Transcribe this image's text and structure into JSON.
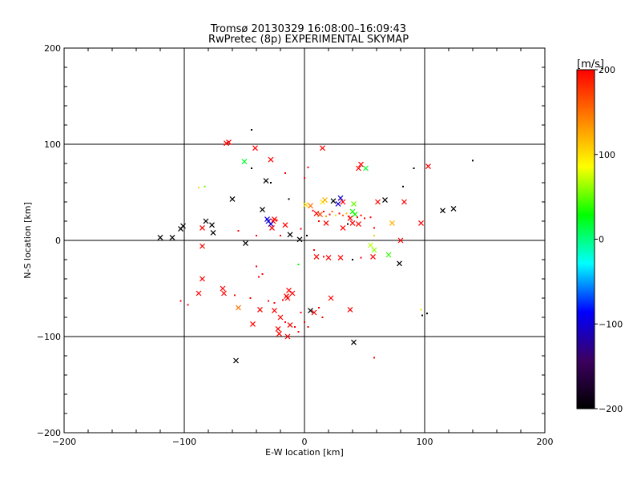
{
  "chart_data": {
    "type": "scatter",
    "title": "Tromsø 20130329 16:08:00–16:09:43",
    "subtitle": "RwPretec (8p) EXPERIMENTAL SKYMAP",
    "xlabel": "E-W location [km]",
    "ylabel": "N-S location [km]",
    "xlim": [
      -200,
      200
    ],
    "ylim": [
      -200,
      200
    ],
    "xticks": [
      -200,
      -100,
      0,
      100,
      200
    ],
    "yticks": [
      -200,
      -100,
      0,
      100,
      200
    ],
    "x_tick_labels": [
      "−200",
      "−100",
      "0",
      "100",
      "200"
    ],
    "y_tick_labels": [
      "−200",
      "−100",
      "0",
      "100",
      "200"
    ],
    "grid": true,
    "colorbar": {
      "label": "[m/s]",
      "range": [
        -200,
        200
      ],
      "ticks": [
        200,
        100,
        0,
        -100,
        -200
      ],
      "tick_labels": [
        "200",
        "100",
        "0",
        "−100",
        "−200"
      ],
      "stops": [
        "#000000",
        "#3c0060",
        "#0000ff",
        "#00ffff",
        "#00ff00",
        "#ffff00",
        "#ff8000",
        "#ff0000"
      ]
    },
    "points": [
      {
        "x": -44,
        "y": 115,
        "v": -200,
        "m": "dot"
      },
      {
        "x": -65,
        "y": 101,
        "v": 200,
        "m": "cross"
      },
      {
        "x": -63,
        "y": 102,
        "v": 200,
        "m": "cross"
      },
      {
        "x": -41,
        "y": 96,
        "v": 200,
        "m": "cross"
      },
      {
        "x": -50,
        "y": 82,
        "v": 20,
        "m": "cross"
      },
      {
        "x": -28,
        "y": 84,
        "v": 200,
        "m": "cross"
      },
      {
        "x": -44,
        "y": 75,
        "v": -200,
        "m": "dot"
      },
      {
        "x": -16,
        "y": 70,
        "v": 200,
        "m": "dot"
      },
      {
        "x": 15,
        "y": 96,
        "v": 200,
        "m": "cross"
      },
      {
        "x": 3,
        "y": 76,
        "v": 200,
        "m": "dot"
      },
      {
        "x": 47,
        "y": 79,
        "v": 200,
        "m": "cross"
      },
      {
        "x": 45,
        "y": 75,
        "v": 200,
        "m": "cross"
      },
      {
        "x": 51,
        "y": 75,
        "v": 20,
        "m": "cross"
      },
      {
        "x": 91,
        "y": 75,
        "v": -200,
        "m": "dot"
      },
      {
        "x": 103,
        "y": 77,
        "v": 200,
        "m": "cross"
      },
      {
        "x": 140,
        "y": 83,
        "v": -200,
        "m": "dot"
      },
      {
        "x": -32,
        "y": 62,
        "v": -200,
        "m": "cross"
      },
      {
        "x": -28,
        "y": 60,
        "v": -200,
        "m": "dot"
      },
      {
        "x": 0,
        "y": 65,
        "v": 200,
        "m": "dot"
      },
      {
        "x": -88,
        "y": 55,
        "v": 100,
        "m": "dot"
      },
      {
        "x": -83,
        "y": 56,
        "v": 50,
        "m": "dot"
      },
      {
        "x": -60,
        "y": 43,
        "v": -200,
        "m": "cross"
      },
      {
        "x": -13,
        "y": 43,
        "v": -200,
        "m": "dot"
      },
      {
        "x": 15,
        "y": 40,
        "v": 100,
        "m": "cross"
      },
      {
        "x": 17,
        "y": 42,
        "v": 120,
        "m": "cross"
      },
      {
        "x": 24,
        "y": 41,
        "v": -200,
        "m": "cross"
      },
      {
        "x": 30,
        "y": 44,
        "v": -100,
        "m": "cross"
      },
      {
        "x": 32,
        "y": 40,
        "v": 200,
        "m": "cross"
      },
      {
        "x": 28,
        "y": 38,
        "v": -100,
        "m": "cross"
      },
      {
        "x": 41,
        "y": 38,
        "v": 50,
        "m": "cross"
      },
      {
        "x": 61,
        "y": 40,
        "v": 200,
        "m": "cross"
      },
      {
        "x": 67,
        "y": 42,
        "v": -200,
        "m": "cross"
      },
      {
        "x": 83,
        "y": 40,
        "v": 200,
        "m": "cross"
      },
      {
        "x": 82,
        "y": 56,
        "v": -200,
        "m": "dot"
      },
      {
        "x": 115,
        "y": 31,
        "v": -200,
        "m": "cross"
      },
      {
        "x": 124,
        "y": 33,
        "v": -200,
        "m": "cross"
      },
      {
        "x": -35,
        "y": 32,
        "v": -200,
        "m": "cross"
      },
      {
        "x": -31,
        "y": 22,
        "v": -100,
        "m": "cross"
      },
      {
        "x": -30,
        "y": 20,
        "v": -100,
        "m": "cross"
      },
      {
        "x": -26,
        "y": 20,
        "v": 200,
        "m": "cross"
      },
      {
        "x": -25,
        "y": 22,
        "v": 200,
        "m": "cross"
      },
      {
        "x": -28,
        "y": 17,
        "v": -100,
        "m": "cross"
      },
      {
        "x": -27,
        "y": 13,
        "v": 200,
        "m": "cross"
      },
      {
        "x": -23,
        "y": 21,
        "v": 200,
        "m": "dot"
      },
      {
        "x": -16,
        "y": 16,
        "v": 200,
        "m": "cross"
      },
      {
        "x": -12,
        "y": 6,
        "v": -200,
        "m": "cross"
      },
      {
        "x": -4,
        "y": 1,
        "v": -200,
        "m": "cross"
      },
      {
        "x": 2,
        "y": 5,
        "v": -200,
        "m": "dot"
      },
      {
        "x": -3,
        "y": 12,
        "v": 200,
        "m": "dot"
      },
      {
        "x": 1,
        "y": 37,
        "v": 100,
        "m": "cross"
      },
      {
        "x": 5,
        "y": 36,
        "v": 150,
        "m": "cross"
      },
      {
        "x": 7,
        "y": 31,
        "v": 200,
        "m": "dot"
      },
      {
        "x": 10,
        "y": 28,
        "v": 200,
        "m": "cross"
      },
      {
        "x": 13,
        "y": 27,
        "v": 170,
        "m": "cross"
      },
      {
        "x": 16,
        "y": 30,
        "v": 200,
        "m": "dot"
      },
      {
        "x": 18,
        "y": 25,
        "v": 130,
        "m": "dot"
      },
      {
        "x": 21,
        "y": 27,
        "v": 200,
        "m": "dot"
      },
      {
        "x": 23,
        "y": 30,
        "v": 150,
        "m": "dot"
      },
      {
        "x": 26,
        "y": 26,
        "v": 100,
        "m": "dot"
      },
      {
        "x": 29,
        "y": 28,
        "v": 200,
        "m": "dot"
      },
      {
        "x": 32,
        "y": 26,
        "v": 160,
        "m": "dot"
      },
      {
        "x": 35,
        "y": 28,
        "v": 120,
        "m": "dot"
      },
      {
        "x": 37,
        "y": 25,
        "v": 200,
        "m": "dot"
      },
      {
        "x": 40,
        "y": 30,
        "v": 30,
        "m": "cross"
      },
      {
        "x": 42,
        "y": 27,
        "v": 30,
        "m": "cross"
      },
      {
        "x": 44,
        "y": 24,
        "v": 200,
        "m": "dot"
      },
      {
        "x": 47,
        "y": 26,
        "v": 200,
        "m": "dot"
      },
      {
        "x": 50,
        "y": 23,
        "v": 200,
        "m": "dot"
      },
      {
        "x": 55,
        "y": 24,
        "v": 200,
        "m": "dot"
      },
      {
        "x": 38,
        "y": 23,
        "v": 200,
        "m": "cross"
      },
      {
        "x": 40,
        "y": 18,
        "v": 200,
        "m": "cross"
      },
      {
        "x": 45,
        "y": 17,
        "v": 200,
        "m": "cross"
      },
      {
        "x": 36,
        "y": 17,
        "v": -200,
        "m": "dot"
      },
      {
        "x": 32,
        "y": 13,
        "v": 200,
        "m": "cross"
      },
      {
        "x": 18,
        "y": 18,
        "v": 200,
        "m": "cross"
      },
      {
        "x": 12,
        "y": 20,
        "v": 200,
        "m": "dot"
      },
      {
        "x": 73,
        "y": 18,
        "v": 120,
        "m": "cross"
      },
      {
        "x": 97,
        "y": 18,
        "v": 200,
        "m": "cross"
      },
      {
        "x": 58,
        "y": 13,
        "v": 200,
        "m": "dot"
      },
      {
        "x": 58,
        "y": 5,
        "v": 110,
        "m": "dot"
      },
      {
        "x": 55,
        "y": -5,
        "v": 70,
        "m": "cross"
      },
      {
        "x": 58,
        "y": -10,
        "v": 60,
        "m": "cross"
      },
      {
        "x": 70,
        "y": -15,
        "v": 40,
        "m": "cross"
      },
      {
        "x": 79,
        "y": -24,
        "v": -200,
        "m": "cross"
      },
      {
        "x": 80,
        "y": 0,
        "v": 200,
        "m": "cross"
      },
      {
        "x": 57,
        "y": -17,
        "v": 200,
        "m": "cross"
      },
      {
        "x": 47,
        "y": -18,
        "v": 200,
        "m": "dot"
      },
      {
        "x": 40,
        "y": -20,
        "v": -200,
        "m": "dot"
      },
      {
        "x": 30,
        "y": -18,
        "v": 200,
        "m": "cross"
      },
      {
        "x": 20,
        "y": -18,
        "v": 200,
        "m": "cross"
      },
      {
        "x": 16,
        "y": -17,
        "v": 200,
        "m": "dot"
      },
      {
        "x": 10,
        "y": -17,
        "v": 200,
        "m": "cross"
      },
      {
        "x": 8,
        "y": -10,
        "v": 200,
        "m": "dot"
      },
      {
        "x": -120,
        "y": 3,
        "v": -200,
        "m": "cross"
      },
      {
        "x": -110,
        "y": 3,
        "v": -200,
        "m": "cross"
      },
      {
        "x": -103,
        "y": 12,
        "v": -200,
        "m": "cross"
      },
      {
        "x": -101,
        "y": 15,
        "v": -200,
        "m": "cross"
      },
      {
        "x": -82,
        "y": 20,
        "v": -200,
        "m": "cross"
      },
      {
        "x": -77,
        "y": 16,
        "v": -200,
        "m": "cross"
      },
      {
        "x": -76,
        "y": 8,
        "v": -200,
        "m": "cross"
      },
      {
        "x": -85,
        "y": 13,
        "v": 200,
        "m": "cross"
      },
      {
        "x": -85,
        "y": -6,
        "v": 200,
        "m": "cross"
      },
      {
        "x": -49,
        "y": -3,
        "v": -200,
        "m": "cross"
      },
      {
        "x": -55,
        "y": 10,
        "v": 200,
        "m": "dot"
      },
      {
        "x": -40,
        "y": 5,
        "v": 200,
        "m": "dot"
      },
      {
        "x": -20,
        "y": 5,
        "v": 200,
        "m": "dot"
      },
      {
        "x": -5,
        "y": -25,
        "v": 30,
        "m": "dot"
      },
      {
        "x": -40,
        "y": -27,
        "v": 200,
        "m": "dot"
      },
      {
        "x": -38,
        "y": -38,
        "v": 200,
        "m": "dot"
      },
      {
        "x": -35,
        "y": -35,
        "v": 200,
        "m": "dot"
      },
      {
        "x": -85,
        "y": -40,
        "v": 200,
        "m": "cross"
      },
      {
        "x": -88,
        "y": -55,
        "v": 200,
        "m": "cross"
      },
      {
        "x": -68,
        "y": -50,
        "v": 200,
        "m": "cross"
      },
      {
        "x": -67,
        "y": -55,
        "v": 200,
        "m": "cross"
      },
      {
        "x": -58,
        "y": -57,
        "v": 200,
        "m": "dot"
      },
      {
        "x": -45,
        "y": -60,
        "v": 200,
        "m": "dot"
      },
      {
        "x": -30,
        "y": -63,
        "v": 200,
        "m": "dot"
      },
      {
        "x": -25,
        "y": -65,
        "v": 200,
        "m": "dot"
      },
      {
        "x": -10,
        "y": -55,
        "v": 200,
        "m": "cross"
      },
      {
        "x": -13,
        "y": -52,
        "v": 200,
        "m": "cross"
      },
      {
        "x": -15,
        "y": -58,
        "v": 200,
        "m": "cross"
      },
      {
        "x": -14,
        "y": -60,
        "v": 200,
        "m": "cross"
      },
      {
        "x": -18,
        "y": -62,
        "v": 200,
        "m": "dot"
      },
      {
        "x": -37,
        "y": -72,
        "v": 200,
        "m": "cross"
      },
      {
        "x": -55,
        "y": -70,
        "v": 150,
        "m": "cross"
      },
      {
        "x": -97,
        "y": -67,
        "v": 200,
        "m": "dot"
      },
      {
        "x": -103,
        "y": -63,
        "v": 200,
        "m": "dot"
      },
      {
        "x": -43,
        "y": -87,
        "v": 200,
        "m": "cross"
      },
      {
        "x": -25,
        "y": -73,
        "v": 200,
        "m": "cross"
      },
      {
        "x": -20,
        "y": -80,
        "v": 200,
        "m": "cross"
      },
      {
        "x": -16,
        "y": -85,
        "v": 200,
        "m": "dot"
      },
      {
        "x": -12,
        "y": -88,
        "v": 200,
        "m": "cross"
      },
      {
        "x": -22,
        "y": -92,
        "v": 200,
        "m": "cross"
      },
      {
        "x": -21,
        "y": -97,
        "v": 200,
        "m": "cross"
      },
      {
        "x": -8,
        "y": -90,
        "v": 200,
        "m": "dot"
      },
      {
        "x": -5,
        "y": -95,
        "v": 200,
        "m": "dot"
      },
      {
        "x": -3,
        "y": -75,
        "v": 200,
        "m": "dot"
      },
      {
        "x": 0,
        "y": -85,
        "v": 200,
        "m": "dot"
      },
      {
        "x": 3,
        "y": -90,
        "v": 200,
        "m": "dot"
      },
      {
        "x": -14,
        "y": -100,
        "v": 200,
        "m": "cross"
      },
      {
        "x": 5,
        "y": -73,
        "v": -200,
        "m": "cross"
      },
      {
        "x": 8,
        "y": -75,
        "v": 200,
        "m": "cross"
      },
      {
        "x": 12,
        "y": -70,
        "v": 200,
        "m": "dot"
      },
      {
        "x": 15,
        "y": -80,
        "v": 200,
        "m": "dot"
      },
      {
        "x": 22,
        "y": -60,
        "v": 200,
        "m": "cross"
      },
      {
        "x": 38,
        "y": -72,
        "v": 200,
        "m": "cross"
      },
      {
        "x": 41,
        "y": -106,
        "v": -200,
        "m": "cross"
      },
      {
        "x": 58,
        "y": -122,
        "v": 200,
        "m": "dot"
      },
      {
        "x": 97,
        "y": -72,
        "v": 100,
        "m": "dot"
      },
      {
        "x": 98,
        "y": -78,
        "v": -200,
        "m": "dot"
      },
      {
        "x": 102,
        "y": -76,
        "v": -200,
        "m": "dot"
      },
      {
        "x": -57,
        "y": -125,
        "v": -200,
        "m": "cross"
      }
    ]
  }
}
